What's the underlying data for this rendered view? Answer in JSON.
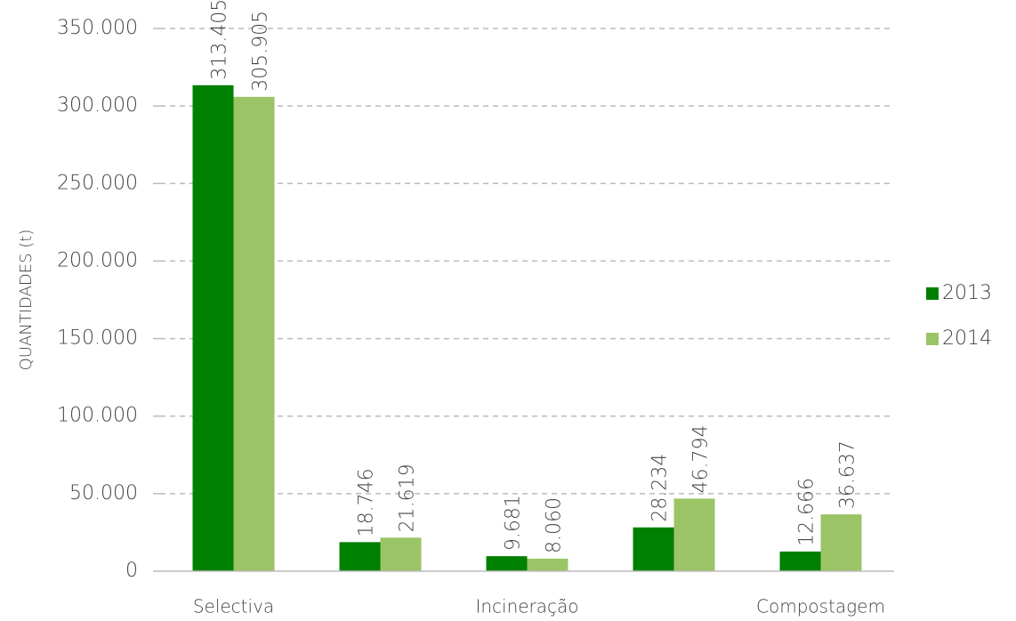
{
  "chart_data": {
    "type": "bar",
    "y_label": "QUANTIDADES (t)",
    "categories": [
      "Selectiva",
      null,
      "Incineração",
      null,
      "Compostagem"
    ],
    "series": [
      {
        "name": "2013",
        "color": "#008000",
        "values": [
          313405,
          18746,
          9681,
          28234,
          12666
        ],
        "value_labels": [
          "313.405",
          "18.746",
          "9.681",
          "28.234",
          "12.666"
        ]
      },
      {
        "name": "2014",
        "color": "#9bc466",
        "values": [
          305905,
          21619,
          8060,
          46794,
          36637
        ],
        "value_labels": [
          "305.905",
          "21.619",
          "8.060",
          "46.794",
          "36.637"
        ]
      }
    ],
    "ylim": [
      0,
      350000
    ],
    "yticks": [
      0,
      {
        "value": 50000,
        "label": "50.000"
      },
      {
        "value": 100000,
        "label": "100.000"
      },
      {
        "value": 150000,
        "label": "150.000"
      },
      {
        "value": 200000,
        "label": "200.000"
      },
      {
        "value": 250000,
        "label": "250.000"
      },
      {
        "value": 300000,
        "label": "300.000"
      },
      {
        "value": 350000,
        "label": "350.000"
      }
    ],
    "grid": true,
    "legend": "right"
  }
}
